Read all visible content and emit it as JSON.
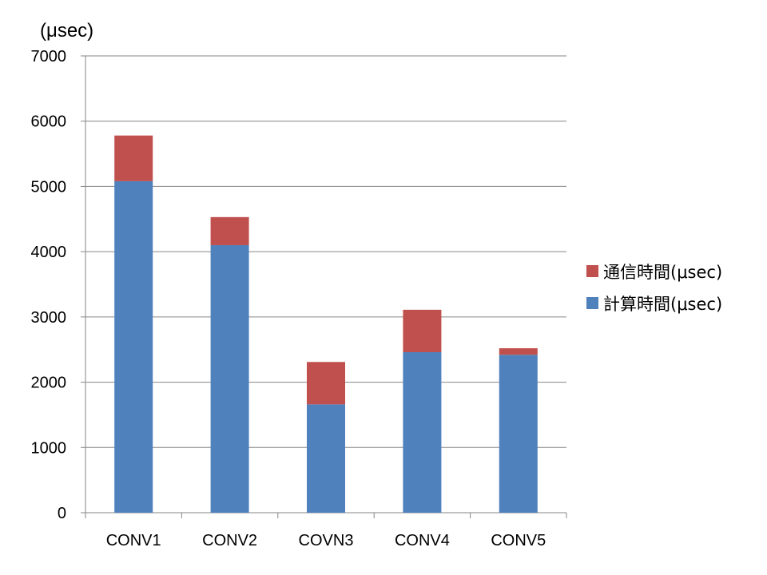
{
  "chart_data": {
    "type": "bar",
    "stacked": true,
    "unit_label": "(μsec)",
    "title": "",
    "xlabel": "",
    "ylabel": "",
    "categories": [
      "CONV1",
      "CONV2",
      "COVN3",
      "CONV4",
      "CONV5"
    ],
    "ylim": [
      0,
      7000
    ],
    "yticks": [
      0,
      1000,
      2000,
      3000,
      4000,
      5000,
      6000,
      7000
    ],
    "grid": true,
    "legend_position": "right",
    "series": [
      {
        "name": "計算時間(μsec)",
        "color": "#4F81BD",
        "values": [
          5080,
          4100,
          1660,
          2460,
          2420
        ]
      },
      {
        "name": "通信時間(μsec)",
        "color": "#C0504D",
        "values": [
          700,
          430,
          650,
          650,
          100
        ]
      }
    ],
    "legend_order": [
      1,
      0
    ]
  }
}
